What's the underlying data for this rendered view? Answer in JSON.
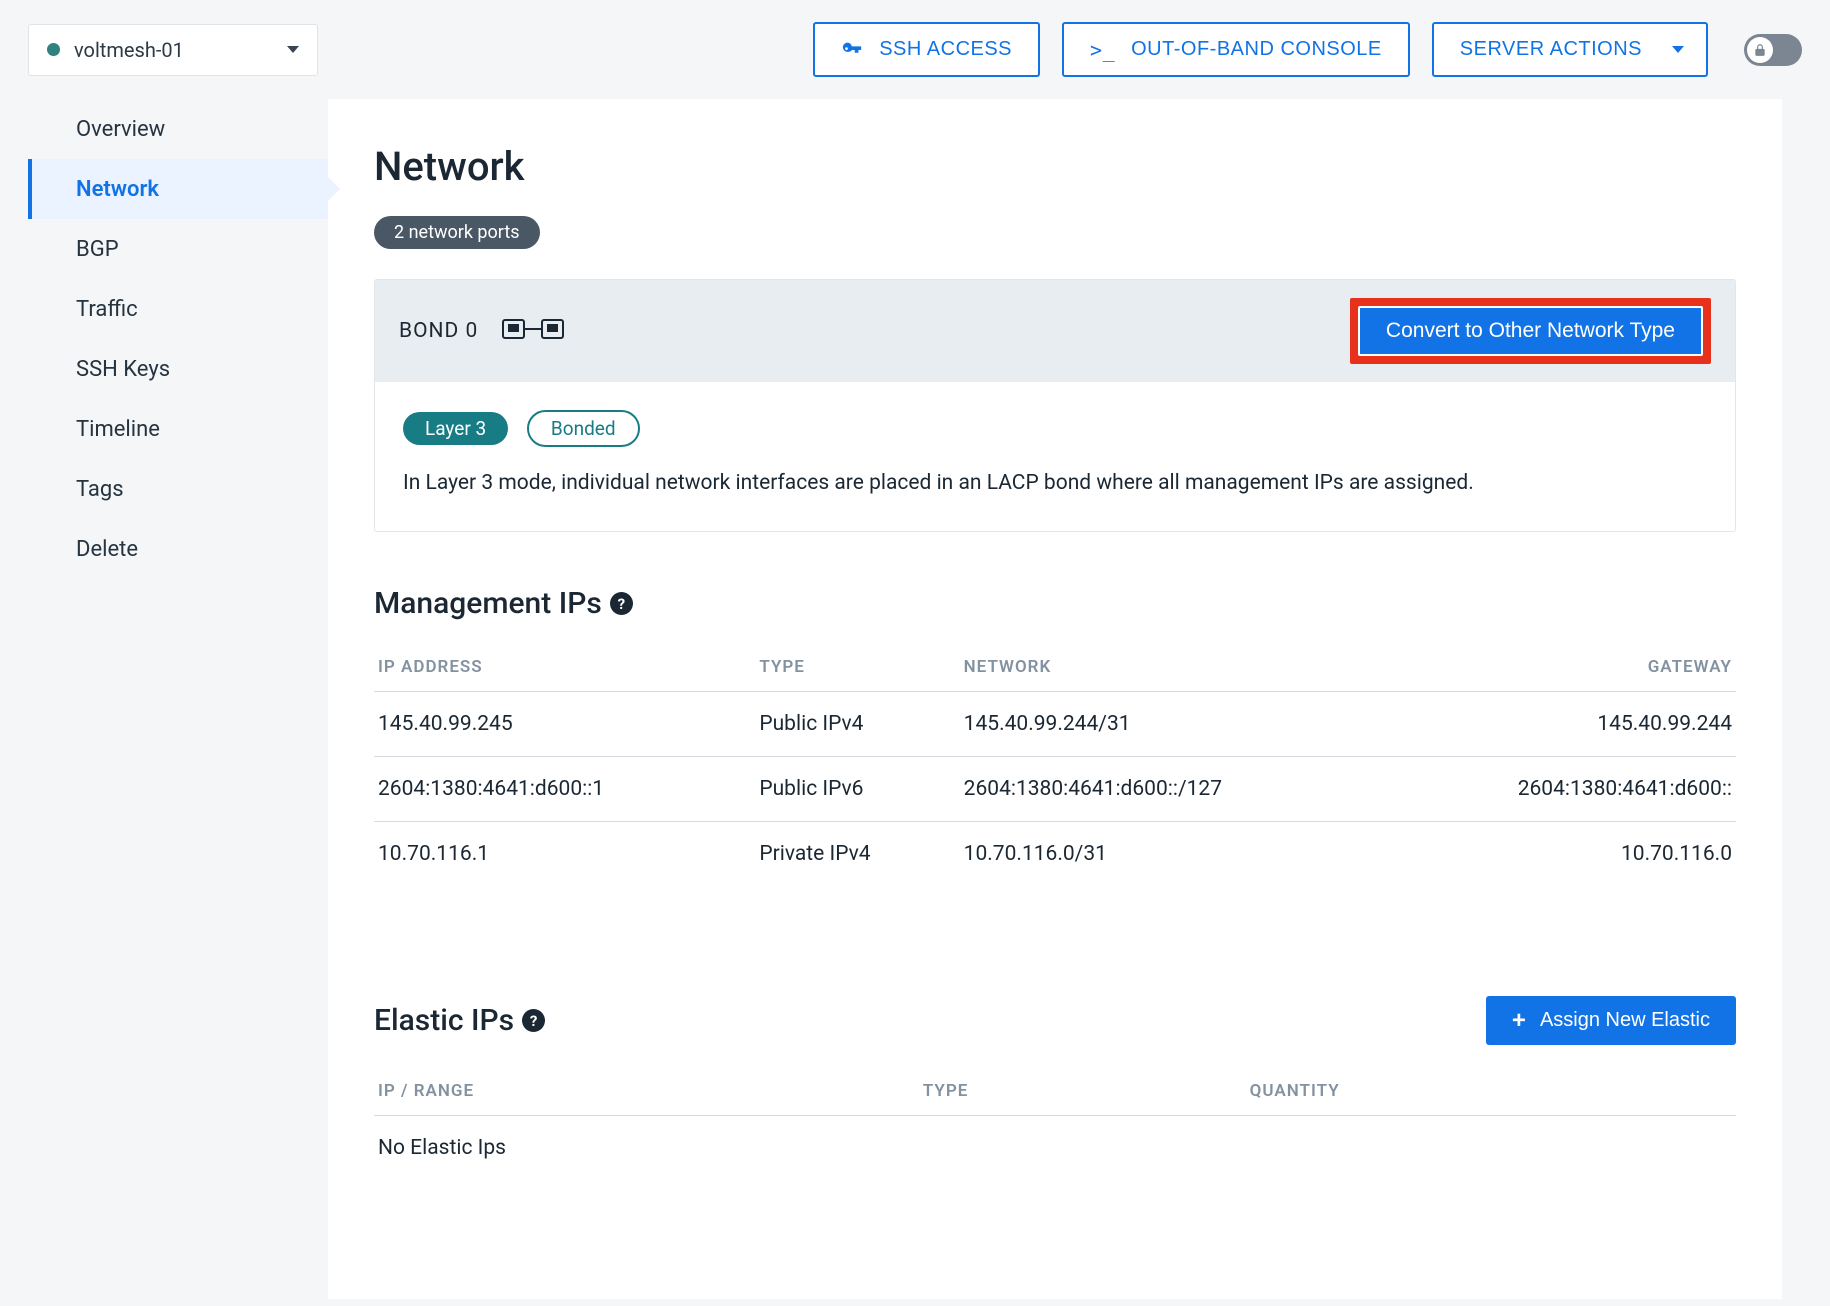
{
  "header": {
    "server_name": "voltmesh-01",
    "buttons": {
      "ssh": "SSH ACCESS",
      "console_prefix": ">_",
      "console": "OUT-OF-BAND CONSOLE",
      "actions": "SERVER ACTIONS"
    }
  },
  "sidebar": {
    "items": [
      {
        "label": "Overview",
        "key": "overview"
      },
      {
        "label": "Network",
        "key": "network",
        "active": true
      },
      {
        "label": "BGP",
        "key": "bgp"
      },
      {
        "label": "Traffic",
        "key": "traffic"
      },
      {
        "label": "SSH Keys",
        "key": "ssh-keys"
      },
      {
        "label": "Timeline",
        "key": "timeline"
      },
      {
        "label": "Tags",
        "key": "tags"
      },
      {
        "label": "Delete",
        "key": "delete"
      }
    ]
  },
  "page": {
    "title": "Network",
    "ports_pill": "2 network ports"
  },
  "bond": {
    "name": "BOND 0",
    "convert_label": "Convert to Other Network Type",
    "chips": {
      "mode": "Layer 3",
      "bonded": "Bonded"
    },
    "description": "In Layer 3 mode, individual network interfaces are placed in an LACP bond where all management IPs are assigned."
  },
  "management_ips": {
    "title": "Management IPs",
    "columns": {
      "ip": "IP ADDRESS",
      "type": "TYPE",
      "network": "NETWORK",
      "gateway": "GATEWAY"
    },
    "rows": [
      {
        "ip": "145.40.99.245",
        "type": "Public IPv4",
        "network": "145.40.99.244/31",
        "gateway": "145.40.99.244"
      },
      {
        "ip": "2604:1380:4641:d600::1",
        "type": "Public IPv6",
        "network": "2604:1380:4641:d600::/127",
        "gateway": "2604:1380:4641:d600::"
      },
      {
        "ip": "10.70.116.1",
        "type": "Private IPv4",
        "network": "10.70.116.0/31",
        "gateway": "10.70.116.0"
      }
    ]
  },
  "elastic_ips": {
    "title": "Elastic IPs",
    "assign_label": "Assign New Elastic",
    "columns": {
      "range": "IP / RANGE",
      "type": "TYPE",
      "quantity": "QUANTITY"
    },
    "empty": "No Elastic Ips"
  },
  "colors": {
    "primary": "#1273e6",
    "teal": "#187c85",
    "highlight": "#e8311a",
    "panel": "#e8edf1",
    "page_bg": "#f4f6f8"
  }
}
